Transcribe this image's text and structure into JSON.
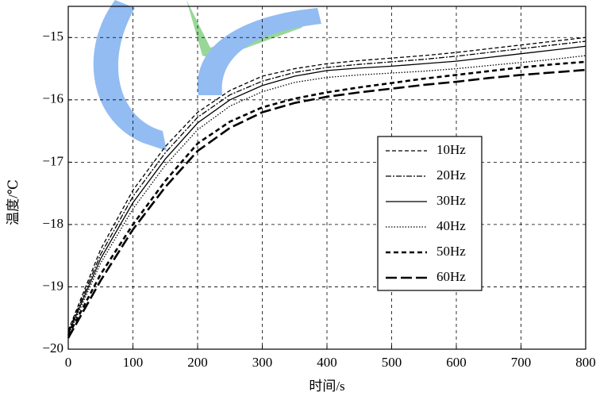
{
  "chart_data": {
    "type": "line",
    "xlabel": "时间/s",
    "ylabel": "温度/℃",
    "x": [
      0,
      50,
      100,
      150,
      200,
      250,
      300,
      350,
      400,
      450,
      500,
      550,
      600,
      650,
      700,
      750,
      800
    ],
    "series": [
      {
        "name": "10Hz",
        "color": "#000000",
        "dash": "5,3",
        "width": 1.3,
        "values": [
          -19.7,
          -18.4,
          -17.45,
          -16.75,
          -16.2,
          -15.85,
          -15.62,
          -15.5,
          -15.42,
          -15.37,
          -15.33,
          -15.29,
          -15.24,
          -15.18,
          -15.12,
          -15.06,
          -15.0
        ]
      },
      {
        "name": "20Hz",
        "color": "#000000",
        "dash": "7,2,2,2",
        "width": 1.3,
        "values": [
          -19.72,
          -18.48,
          -17.55,
          -16.85,
          -16.28,
          -15.92,
          -15.7,
          -15.56,
          -15.48,
          -15.43,
          -15.39,
          -15.35,
          -15.3,
          -15.24,
          -15.18,
          -15.12,
          -15.06
        ]
      },
      {
        "name": "30Hz",
        "color": "#000000",
        "dash": "none",
        "width": 1.3,
        "values": [
          -19.75,
          -18.55,
          -17.65,
          -16.95,
          -16.37,
          -16.0,
          -15.77,
          -15.62,
          -15.53,
          -15.49,
          -15.46,
          -15.42,
          -15.38,
          -15.32,
          -15.26,
          -15.2,
          -15.14
        ]
      },
      {
        "name": "40Hz",
        "color": "#000000",
        "dash": "1.5,2",
        "width": 1.3,
        "values": [
          -19.78,
          -18.62,
          -17.75,
          -17.05,
          -16.48,
          -16.1,
          -15.87,
          -15.72,
          -15.64,
          -15.6,
          -15.57,
          -15.54,
          -15.5,
          -15.45,
          -15.4,
          -15.35,
          -15.29
        ]
      },
      {
        "name": "50Hz",
        "color": "#000000",
        "dash": "6,4",
        "width": 2.6,
        "values": [
          -19.78,
          -18.8,
          -18.0,
          -17.3,
          -16.7,
          -16.35,
          -16.12,
          -15.98,
          -15.88,
          -15.8,
          -15.73,
          -15.66,
          -15.6,
          -15.54,
          -15.48,
          -15.43,
          -15.39
        ]
      },
      {
        "name": "60Hz",
        "color": "#000000",
        "dash": "14,5",
        "width": 2.6,
        "values": [
          -19.82,
          -18.9,
          -18.08,
          -17.4,
          -16.82,
          -16.45,
          -16.2,
          -16.05,
          -15.95,
          -15.88,
          -15.82,
          -15.76,
          -15.71,
          -15.65,
          -15.6,
          -15.56,
          -15.52
        ]
      }
    ],
    "xlim": [
      0,
      800
    ],
    "xticks": [
      0,
      100,
      200,
      300,
      400,
      500,
      600,
      700,
      800
    ],
    "ylim": [
      -20,
      -14.5
    ],
    "yticks": [
      {
        "value": -20,
        "label": "−20"
      },
      {
        "value": -19,
        "label": "−19"
      },
      {
        "value": -18,
        "label": "−18"
      },
      {
        "value": -17,
        "label": "−17"
      },
      {
        "value": -16,
        "label": "−16"
      },
      {
        "value": -15,
        "label": "−15"
      }
    ],
    "grid": true,
    "legend": "right"
  }
}
